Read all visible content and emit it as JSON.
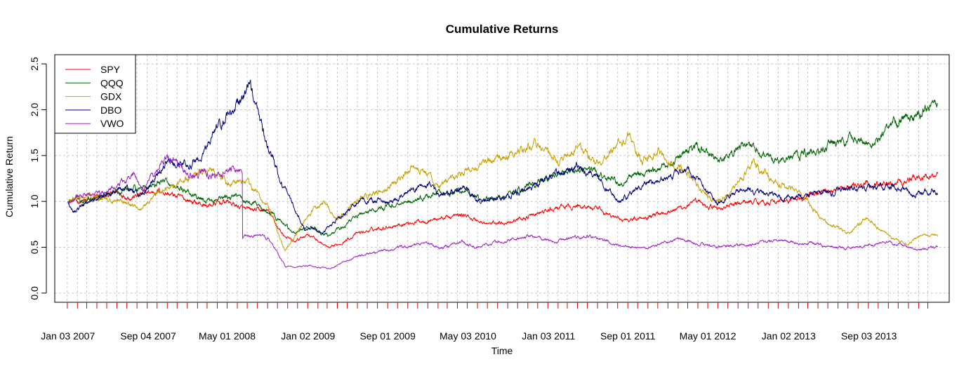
{
  "chart_data": {
    "type": "line",
    "title": "Cumulative Returns",
    "xlabel": "Time",
    "ylabel": "Cumulative Return",
    "ylim": [
      -0.1,
      2.6
    ],
    "yticks": [
      0.0,
      0.5,
      1.0,
      1.5,
      2.0,
      2.5
    ],
    "ytick_labels": [
      "0.0",
      "0.5",
      "1.0",
      "1.5",
      "2.0",
      "2.5"
    ],
    "xlim": [
      "2006-11-24",
      "2014-05-05"
    ],
    "x_tick_labels": [
      {
        "date": "2007-01-03",
        "label": "Jan 03 2007"
      },
      {
        "date": "2007-09-04",
        "label": "Sep 04 2007"
      },
      {
        "date": "2008-05-01",
        "label": "May 01 2008"
      },
      {
        "date": "2009-01-02",
        "label": "Jan 02 2009"
      },
      {
        "date": "2009-09-01",
        "label": "Sep 01 2009"
      },
      {
        "date": "2010-05-03",
        "label": "May 03 2010"
      },
      {
        "date": "2011-01-03",
        "label": "Jan 03 2011"
      },
      {
        "date": "2011-09-01",
        "label": "Sep 01 2011"
      },
      {
        "date": "2012-05-01",
        "label": "May 01 2012"
      },
      {
        "date": "2013-01-02",
        "label": "Jan 02 2013"
      },
      {
        "date": "2013-09-03",
        "label": "Sep 03 2013"
      }
    ],
    "grid": true,
    "legend_position": "top-left",
    "series": [
      {
        "name": "SPY",
        "color": "#ff0000",
        "points": [
          [
            "2007-01-03",
            1.0
          ],
          [
            "2007-03-01",
            1.0
          ],
          [
            "2007-06-01",
            1.1
          ],
          [
            "2007-07-15",
            1.05
          ],
          [
            "2007-10-09",
            1.12
          ],
          [
            "2007-12-01",
            1.05
          ],
          [
            "2008-03-01",
            0.95
          ],
          [
            "2008-05-01",
            1.0
          ],
          [
            "2008-07-01",
            0.9
          ],
          [
            "2008-09-01",
            0.9
          ],
          [
            "2008-10-15",
            0.65
          ],
          [
            "2008-11-20",
            0.55
          ],
          [
            "2009-01-02",
            0.65
          ],
          [
            "2009-03-09",
            0.48
          ],
          [
            "2009-06-01",
            0.65
          ],
          [
            "2009-09-01",
            0.73
          ],
          [
            "2010-01-01",
            0.8
          ],
          [
            "2010-04-20",
            0.85
          ],
          [
            "2010-07-01",
            0.75
          ],
          [
            "2010-10-01",
            0.8
          ],
          [
            "2011-02-01",
            0.93
          ],
          [
            "2011-05-01",
            0.95
          ],
          [
            "2011-08-10",
            0.8
          ],
          [
            "2011-10-01",
            0.82
          ],
          [
            "2012-01-01",
            0.9
          ],
          [
            "2012-04-01",
            0.98
          ],
          [
            "2012-06-01",
            0.92
          ],
          [
            "2012-09-01",
            1.0
          ],
          [
            "2013-01-01",
            1.0
          ],
          [
            "2013-05-01",
            1.12
          ],
          [
            "2013-07-01",
            1.15
          ],
          [
            "2013-12-01",
            1.22
          ],
          [
            "2014-03-31",
            1.3
          ]
        ]
      },
      {
        "name": "QQQ",
        "color": "#006400",
        "points": [
          [
            "2007-01-03",
            1.0
          ],
          [
            "2007-06-01",
            1.1
          ],
          [
            "2007-10-31",
            1.22
          ],
          [
            "2008-01-15",
            1.05
          ],
          [
            "2008-03-01",
            1.0
          ],
          [
            "2008-06-01",
            1.05
          ],
          [
            "2008-09-01",
            0.9
          ],
          [
            "2008-11-20",
            0.65
          ],
          [
            "2009-01-02",
            0.72
          ],
          [
            "2009-03-09",
            0.62
          ],
          [
            "2009-06-01",
            0.85
          ],
          [
            "2009-09-01",
            0.95
          ],
          [
            "2010-01-01",
            1.05
          ],
          [
            "2010-04-20",
            1.12
          ],
          [
            "2010-07-01",
            1.0
          ],
          [
            "2010-10-01",
            1.12
          ],
          [
            "2011-02-01",
            1.3
          ],
          [
            "2011-05-01",
            1.35
          ],
          [
            "2011-08-10",
            1.2
          ],
          [
            "2011-10-01",
            1.3
          ],
          [
            "2012-01-01",
            1.4
          ],
          [
            "2012-04-01",
            1.62
          ],
          [
            "2012-06-01",
            1.48
          ],
          [
            "2012-09-01",
            1.62
          ],
          [
            "2012-11-15",
            1.45
          ],
          [
            "2013-01-01",
            1.48
          ],
          [
            "2013-05-01",
            1.6
          ],
          [
            "2013-08-01",
            1.68
          ],
          [
            "2013-09-01",
            1.62
          ],
          [
            "2013-12-01",
            1.88
          ],
          [
            "2014-03-31",
            2.05
          ]
        ]
      },
      {
        "name": "GDX",
        "color": "#c8a000",
        "points": [
          [
            "2007-01-03",
            1.0
          ],
          [
            "2007-03-01",
            1.05
          ],
          [
            "2007-06-01",
            1.0
          ],
          [
            "2007-08-15",
            0.92
          ],
          [
            "2007-10-01",
            1.1
          ],
          [
            "2007-12-01",
            1.2
          ],
          [
            "2008-03-17",
            1.38
          ],
          [
            "2008-05-01",
            1.2
          ],
          [
            "2008-07-01",
            1.22
          ],
          [
            "2008-09-01",
            0.95
          ],
          [
            "2008-10-24",
            0.45
          ],
          [
            "2009-01-02",
            0.85
          ],
          [
            "2009-02-20",
            1.0
          ],
          [
            "2009-04-01",
            0.8
          ],
          [
            "2009-06-01",
            1.0
          ],
          [
            "2009-09-01",
            1.15
          ],
          [
            "2009-12-01",
            1.4
          ],
          [
            "2010-02-01",
            1.15
          ],
          [
            "2010-06-01",
            1.4
          ],
          [
            "2010-09-01",
            1.5
          ],
          [
            "2010-12-01",
            1.65
          ],
          [
            "2011-02-01",
            1.4
          ],
          [
            "2011-04-01",
            1.6
          ],
          [
            "2011-06-01",
            1.4
          ],
          [
            "2011-09-01",
            1.72
          ],
          [
            "2011-10-15",
            1.45
          ],
          [
            "2011-12-01",
            1.55
          ],
          [
            "2012-03-01",
            1.3
          ],
          [
            "2012-05-15",
            1.0
          ],
          [
            "2012-07-01",
            1.05
          ],
          [
            "2012-09-15",
            1.4
          ],
          [
            "2012-12-01",
            1.2
          ],
          [
            "2013-02-01",
            1.1
          ],
          [
            "2013-04-15",
            0.8
          ],
          [
            "2013-07-01",
            0.65
          ],
          [
            "2013-08-25",
            0.82
          ],
          [
            "2013-11-01",
            0.62
          ],
          [
            "2013-12-20",
            0.53
          ],
          [
            "2014-02-01",
            0.62
          ],
          [
            "2014-03-31",
            0.62
          ]
        ]
      },
      {
        "name": "DBO",
        "color": "#000080",
        "points": [
          [
            "2007-01-03",
            1.0
          ],
          [
            "2007-01-20",
            0.9
          ],
          [
            "2007-04-01",
            1.05
          ],
          [
            "2007-07-01",
            1.15
          ],
          [
            "2007-08-15",
            1.05
          ],
          [
            "2007-11-01",
            1.45
          ],
          [
            "2007-12-01",
            1.4
          ],
          [
            "2008-02-01",
            1.45
          ],
          [
            "2008-04-01",
            1.8
          ],
          [
            "2008-07-03",
            2.25
          ],
          [
            "2008-07-15",
            2.2
          ],
          [
            "2008-09-01",
            1.6
          ],
          [
            "2008-10-15",
            1.2
          ],
          [
            "2008-12-22",
            0.7
          ],
          [
            "2009-01-20",
            0.72
          ],
          [
            "2009-02-15",
            0.65
          ],
          [
            "2009-06-01",
            1.0
          ],
          [
            "2009-09-01",
            1.0
          ],
          [
            "2009-12-01",
            1.15
          ],
          [
            "2010-01-01",
            1.2
          ],
          [
            "2010-02-01",
            1.05
          ],
          [
            "2010-05-01",
            1.15
          ],
          [
            "2010-06-01",
            1.0
          ],
          [
            "2010-09-01",
            1.05
          ],
          [
            "2010-12-01",
            1.2
          ],
          [
            "2011-04-01",
            1.4
          ],
          [
            "2011-06-01",
            1.25
          ],
          [
            "2011-08-10",
            1.0
          ],
          [
            "2011-10-01",
            1.15
          ],
          [
            "2012-03-01",
            1.35
          ],
          [
            "2012-06-01",
            1.0
          ],
          [
            "2012-09-01",
            1.15
          ],
          [
            "2012-12-01",
            1.05
          ],
          [
            "2013-03-01",
            1.05
          ],
          [
            "2013-07-01",
            1.15
          ],
          [
            "2013-09-01",
            1.15
          ],
          [
            "2013-12-01",
            1.15
          ],
          [
            "2014-01-20",
            1.08
          ],
          [
            "2014-03-31",
            1.1
          ]
        ]
      },
      {
        "name": "VWO",
        "color": "#a020c8",
        "points": [
          [
            "2007-01-03",
            1.0
          ],
          [
            "2007-02-27",
            1.05
          ],
          [
            "2007-05-01",
            1.1
          ],
          [
            "2007-07-25",
            1.3
          ],
          [
            "2007-08-16",
            1.1
          ],
          [
            "2007-10-29",
            1.5
          ],
          [
            "2007-12-01",
            1.4
          ],
          [
            "2008-01-22",
            1.25
          ],
          [
            "2008-02-15",
            1.35
          ],
          [
            "2008-03-15",
            1.25
          ],
          [
            "2008-05-20",
            1.35
          ],
          [
            "2008-06-16",
            1.35
          ],
          [
            "2008-06-17",
            0.63
          ],
          [
            "2008-09-01",
            0.6
          ],
          [
            "2008-10-27",
            0.28
          ],
          [
            "2009-01-02",
            0.3
          ],
          [
            "2009-03-09",
            0.27
          ],
          [
            "2009-06-01",
            0.4
          ],
          [
            "2009-09-01",
            0.47
          ],
          [
            "2010-01-01",
            0.55
          ],
          [
            "2010-02-05",
            0.48
          ],
          [
            "2010-04-15",
            0.57
          ],
          [
            "2010-05-25",
            0.5
          ],
          [
            "2010-11-01",
            0.62
          ],
          [
            "2011-02-01",
            0.57
          ],
          [
            "2011-05-01",
            0.62
          ],
          [
            "2011-08-10",
            0.52
          ],
          [
            "2011-10-05",
            0.48
          ],
          [
            "2012-02-01",
            0.58
          ],
          [
            "2012-06-01",
            0.5
          ],
          [
            "2012-09-01",
            0.53
          ],
          [
            "2012-12-01",
            0.57
          ],
          [
            "2013-03-01",
            0.55
          ],
          [
            "2013-06-24",
            0.48
          ],
          [
            "2013-10-22",
            0.55
          ],
          [
            "2014-02-03",
            0.48
          ],
          [
            "2014-03-31",
            0.5
          ]
        ]
      }
    ]
  }
}
